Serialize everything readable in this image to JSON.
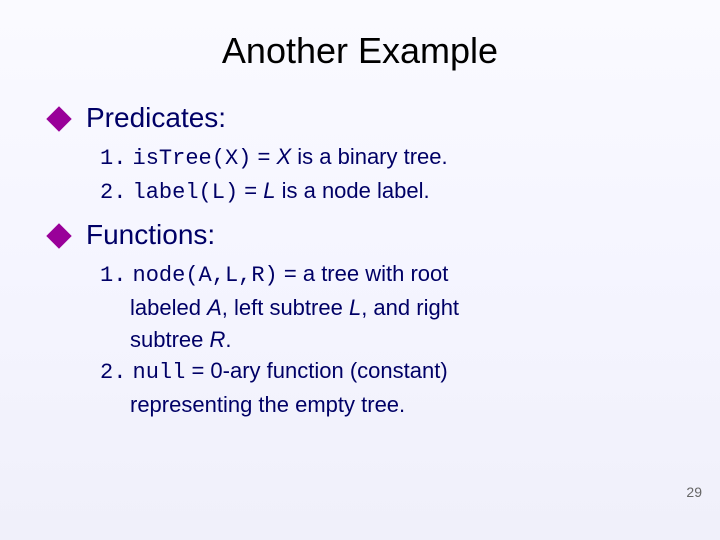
{
  "title": "Another Example",
  "page_number": "29",
  "colors": {
    "bullet_diamond": "#990099",
    "text": "#000066",
    "title": "#000000",
    "page_num": "#666666",
    "background_top": "#fafaff",
    "background_bottom": "#f0f0fa"
  },
  "typography": {
    "title_fontsize": 36,
    "section_fontsize": 28,
    "item_fontsize": 22,
    "page_num_fontsize": 14,
    "font_family": "Verdana",
    "code_font": "Courier New"
  },
  "sections": {
    "predicates": {
      "label": "Predicates:",
      "items": [
        {
          "num": "1.",
          "code": "isTree(X)",
          "eq": " = ",
          "var": "X",
          "rest": "  is a binary tree."
        },
        {
          "num": "2.",
          "code": "label(L)",
          "eq": " = ",
          "var": "L",
          "rest": "  is a node label."
        }
      ]
    },
    "functions": {
      "label": "Functions:",
      "items": [
        {
          "num": "1.",
          "code": "node(A,L,R)",
          "eq": " = ",
          "line1_rest": "a tree with root",
          "line2_a": "labeled ",
          "line2_var1": "A",
          "line2_b": ", left subtree ",
          "line2_var2": "L",
          "line2_c": ", and right",
          "line3_a": "subtree ",
          "line3_var": "R",
          "line3_b": "."
        },
        {
          "num": "2.",
          "code": "null",
          "eq": " = ",
          "line1_rest": "0-ary function (constant)",
          "line2": "representing the empty tree."
        }
      ]
    }
  }
}
